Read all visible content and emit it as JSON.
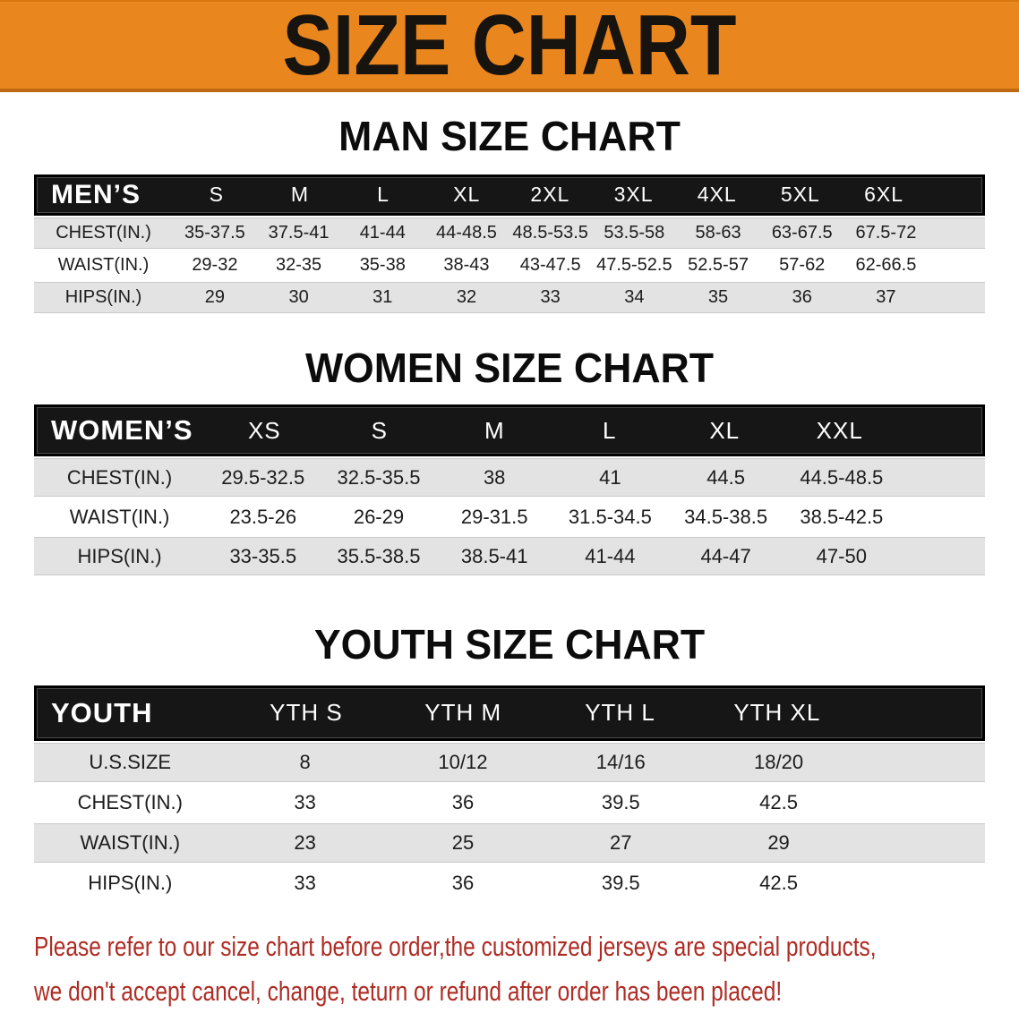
{
  "banner": {
    "title": "SIZE CHART",
    "bg_color": "#E9861E",
    "text_color": "#17130e"
  },
  "sections": [
    {
      "heading": "MAN SIZE CHART",
      "table": {
        "label": "MEN’S",
        "columns": [
          "S",
          "M",
          "L",
          "XL",
          "2XL",
          "3XL",
          "4XL",
          "5XL",
          "6XL"
        ],
        "rows": [
          {
            "label": "CHEST(IN.)",
            "values": [
              "35-37.5",
              "37.5-41",
              "41-44",
              "44-48.5",
              "48.5-53.5",
              "53.5-58",
              "58-63",
              "63-67.5",
              "67.5-72"
            ]
          },
          {
            "label": "WAIST(IN.)",
            "values": [
              "29-32",
              "32-35",
              "35-38",
              "38-43",
              "43-47.5",
              "47.5-52.5",
              "52.5-57",
              "57-62",
              "62-66.5"
            ]
          },
          {
            "label": "HIPS(IN.)",
            "values": [
              "29",
              "30",
              "31",
              "32",
              "33",
              "34",
              "35",
              "36",
              "37"
            ]
          }
        ]
      }
    },
    {
      "heading": "WOMEN SIZE CHART",
      "table": {
        "label": "WOMEN’S",
        "columns": [
          "XS",
          "S",
          "M",
          "L",
          "XL",
          "XXL"
        ],
        "rows": [
          {
            "label": "CHEST(IN.)",
            "values": [
              "29.5-32.5",
              "32.5-35.5",
              "38",
              "41",
              "44.5",
              "44.5-48.5"
            ]
          },
          {
            "label": "WAIST(IN.)",
            "values": [
              "23.5-26",
              "26-29",
              "29-31.5",
              "31.5-34.5",
              "34.5-38.5",
              "38.5-42.5"
            ]
          },
          {
            "label": "HIPS(IN.)",
            "values": [
              "33-35.5",
              "35.5-38.5",
              "38.5-41",
              "41-44",
              "44-47",
              "47-50"
            ]
          }
        ]
      }
    },
    {
      "heading": "YOUTH SIZE CHART",
      "table": {
        "label": "YOUTH",
        "columns": [
          "YTH S",
          "YTH M",
          "YTH L",
          "YTH XL"
        ],
        "rows": [
          {
            "label": "U.S.SIZE",
            "values": [
              "8",
              "10/12",
              "14/16",
              "18/20"
            ]
          },
          {
            "label": "CHEST(IN.)",
            "values": [
              "33",
              "36",
              "39.5",
              "42.5"
            ]
          },
          {
            "label": "WAIST(IN.)",
            "values": [
              "23",
              "25",
              "27",
              "29"
            ]
          },
          {
            "label": "HIPS(IN.)",
            "values": [
              "33",
              "36",
              "39.5",
              "42.5"
            ]
          }
        ]
      }
    }
  ],
  "footer": {
    "line1": "Please refer to our size chart before order,the customized jerseys are special products,",
    "line2": "we don't accept cancel, change, teturn or refund after order has been placed!",
    "text_color": "#AE2C24"
  }
}
